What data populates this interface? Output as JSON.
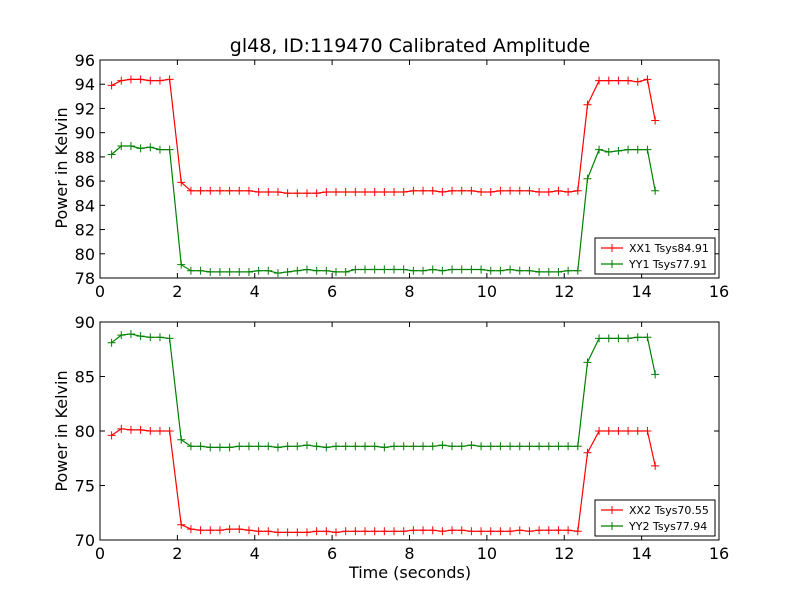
{
  "figure": {
    "title": "gl48, ID:119470 Calibrated Amplitude",
    "xlabel": "Time (seconds)"
  },
  "chart_data": [
    {
      "type": "line",
      "title": "gl48, ID:119470 Calibrated Amplitude",
      "xlabel": "",
      "ylabel": "Power in Kelvin",
      "xlim": [
        0,
        16
      ],
      "ylim": [
        78,
        96
      ],
      "xticks": [
        0,
        2,
        4,
        6,
        8,
        10,
        12,
        14,
        16
      ],
      "yticks": [
        78,
        80,
        82,
        84,
        86,
        88,
        90,
        92,
        94,
        96
      ],
      "grid": false,
      "legend_position": "lower-right",
      "x": [
        0.3,
        0.55,
        0.8,
        1.05,
        1.3,
        1.55,
        1.8,
        2.1,
        2.35,
        2.6,
        2.85,
        3.1,
        3.35,
        3.6,
        3.85,
        4.1,
        4.35,
        4.6,
        4.85,
        5.1,
        5.35,
        5.6,
        5.85,
        6.1,
        6.35,
        6.6,
        6.85,
        7.1,
        7.35,
        7.6,
        7.85,
        8.1,
        8.35,
        8.6,
        8.85,
        9.1,
        9.35,
        9.6,
        9.85,
        10.1,
        10.35,
        10.6,
        10.85,
        11.1,
        11.35,
        11.6,
        11.85,
        12.1,
        12.35,
        12.6,
        12.9,
        13.15,
        13.4,
        13.65,
        13.9,
        14.15,
        14.35,
        14.55
      ],
      "series": [
        {
          "name": "XX1 Tsys84.91",
          "color": "#ff0000",
          "values": [
            93.9,
            94.3,
            94.4,
            94.4,
            94.3,
            94.3,
            94.4,
            85.9,
            85.2,
            85.2,
            85.2,
            85.2,
            85.2,
            85.2,
            85.2,
            85.1,
            85.1,
            85.1,
            85.0,
            85.0,
            85.0,
            85.0,
            85.1,
            85.1,
            85.1,
            85.1,
            85.1,
            85.1,
            85.1,
            85.1,
            85.1,
            85.2,
            85.2,
            85.2,
            85.1,
            85.2,
            85.2,
            85.2,
            85.1,
            85.1,
            85.2,
            85.2,
            85.2,
            85.2,
            85.1,
            85.1,
            85.2,
            85.1,
            85.2,
            92.3,
            94.3,
            94.3,
            94.3,
            94.3,
            94.2,
            94.4,
            91.0,
            null
          ]
        },
        {
          "name": "YY1 Tsys77.91",
          "color": "#008000",
          "values": [
            88.2,
            88.9,
            88.9,
            88.7,
            88.8,
            88.6,
            88.6,
            79.1,
            78.6,
            78.6,
            78.5,
            78.5,
            78.5,
            78.5,
            78.5,
            78.6,
            78.6,
            78.4,
            78.5,
            78.6,
            78.7,
            78.6,
            78.6,
            78.5,
            78.5,
            78.7,
            78.7,
            78.7,
            78.7,
            78.7,
            78.7,
            78.6,
            78.6,
            78.7,
            78.6,
            78.7,
            78.7,
            78.7,
            78.7,
            78.6,
            78.6,
            78.7,
            78.6,
            78.6,
            78.5,
            78.5,
            78.5,
            78.6,
            78.6,
            86.2,
            88.6,
            88.4,
            88.5,
            88.6,
            88.6,
            88.6,
            85.2,
            null
          ]
        }
      ]
    },
    {
      "type": "line",
      "title": "",
      "xlabel": "Time (seconds)",
      "ylabel": "Power in Kelvin",
      "xlim": [
        0,
        16
      ],
      "ylim": [
        70,
        90
      ],
      "xticks": [
        0,
        2,
        4,
        6,
        8,
        10,
        12,
        14,
        16
      ],
      "yticks": [
        70,
        75,
        80,
        85,
        90
      ],
      "grid": false,
      "legend_position": "lower-right",
      "x": [
        0.3,
        0.55,
        0.8,
        1.05,
        1.3,
        1.55,
        1.8,
        2.1,
        2.35,
        2.6,
        2.85,
        3.1,
        3.35,
        3.6,
        3.85,
        4.1,
        4.35,
        4.6,
        4.85,
        5.1,
        5.35,
        5.6,
        5.85,
        6.1,
        6.35,
        6.6,
        6.85,
        7.1,
        7.35,
        7.6,
        7.85,
        8.1,
        8.35,
        8.6,
        8.85,
        9.1,
        9.35,
        9.6,
        9.85,
        10.1,
        10.35,
        10.6,
        10.85,
        11.1,
        11.35,
        11.6,
        11.85,
        12.1,
        12.35,
        12.6,
        12.9,
        13.15,
        13.4,
        13.65,
        13.9,
        14.15,
        14.35,
        14.55
      ],
      "series": [
        {
          "name": "XX2 Tsys70.55",
          "color": "#ff0000",
          "values": [
            79.6,
            80.2,
            80.1,
            80.1,
            80.0,
            80.0,
            80.0,
            71.4,
            71.0,
            70.9,
            70.9,
            70.9,
            71.0,
            71.0,
            70.9,
            70.8,
            70.8,
            70.7,
            70.7,
            70.7,
            70.7,
            70.8,
            70.8,
            70.7,
            70.8,
            70.8,
            70.8,
            70.8,
            70.8,
            70.8,
            70.8,
            70.9,
            70.9,
            70.9,
            70.8,
            70.9,
            70.9,
            70.8,
            70.8,
            70.8,
            70.8,
            70.8,
            70.9,
            70.8,
            70.9,
            70.9,
            70.9,
            70.9,
            70.8,
            78.0,
            80.0,
            80.0,
            80.0,
            80.0,
            80.0,
            80.0,
            76.8,
            null
          ]
        },
        {
          "name": "YY2 Tsys77.94",
          "color": "#008000",
          "values": [
            88.1,
            88.8,
            88.9,
            88.7,
            88.6,
            88.6,
            88.5,
            79.2,
            78.6,
            78.6,
            78.5,
            78.5,
            78.5,
            78.6,
            78.6,
            78.6,
            78.6,
            78.5,
            78.6,
            78.6,
            78.7,
            78.6,
            78.5,
            78.6,
            78.6,
            78.6,
            78.6,
            78.6,
            78.5,
            78.6,
            78.6,
            78.6,
            78.6,
            78.6,
            78.7,
            78.6,
            78.6,
            78.7,
            78.6,
            78.6,
            78.6,
            78.6,
            78.6,
            78.6,
            78.6,
            78.6,
            78.6,
            78.6,
            78.6,
            86.3,
            88.5,
            88.5,
            88.5,
            88.5,
            88.6,
            88.6,
            85.2,
            null
          ]
        }
      ]
    }
  ]
}
